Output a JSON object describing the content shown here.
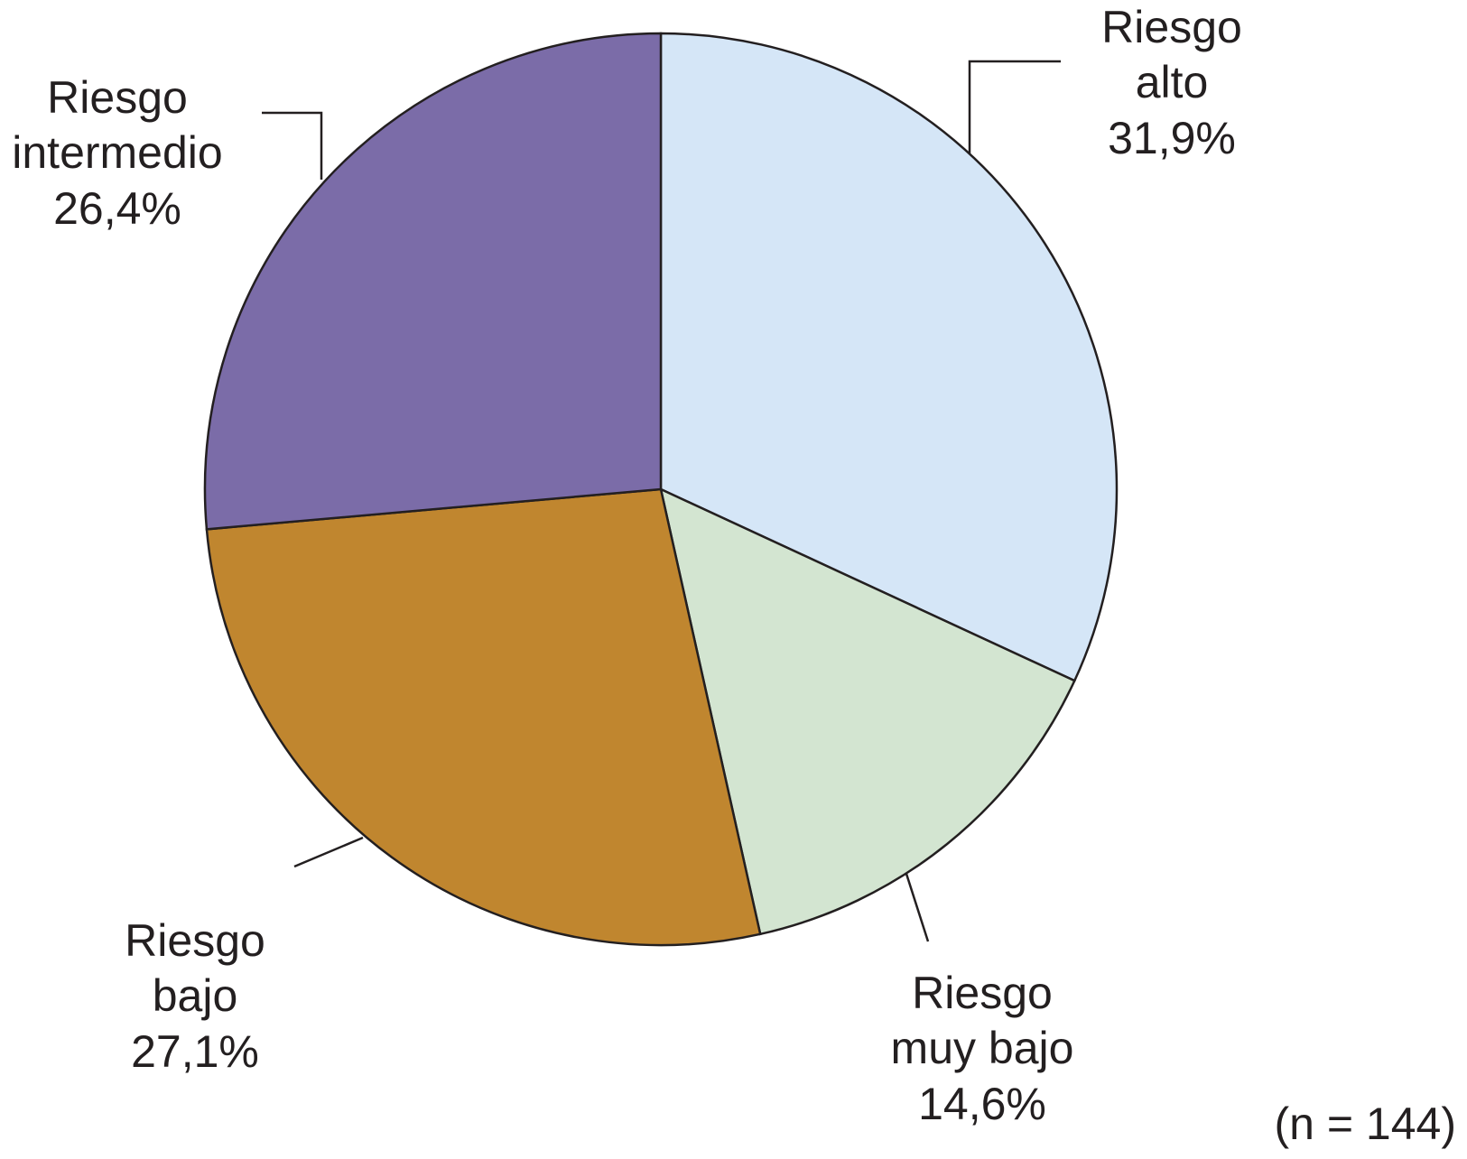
{
  "chart_data": {
    "type": "pie",
    "title": "",
    "start_angle_deg": 0,
    "direction": "clockwise",
    "slices": [
      {
        "line1": "Riesgo",
        "line2": "alto",
        "value_label": "31,9%",
        "value": 31.9,
        "color": "#d5e6f7"
      },
      {
        "line1": "Riesgo",
        "line2": "muy bajo",
        "value_label": "14,6%",
        "value": 14.6,
        "color": "#d3e5d1"
      },
      {
        "line1": "Riesgo",
        "line2": "bajo",
        "value_label": "27,1%",
        "value": 27.1,
        "color": "#c0862f"
      },
      {
        "line1": "Riesgo",
        "line2": "intermedio",
        "value_label": "26,4%",
        "value": 26.4,
        "color": "#7b6ca8"
      }
    ],
    "note": "(n = 144)"
  }
}
